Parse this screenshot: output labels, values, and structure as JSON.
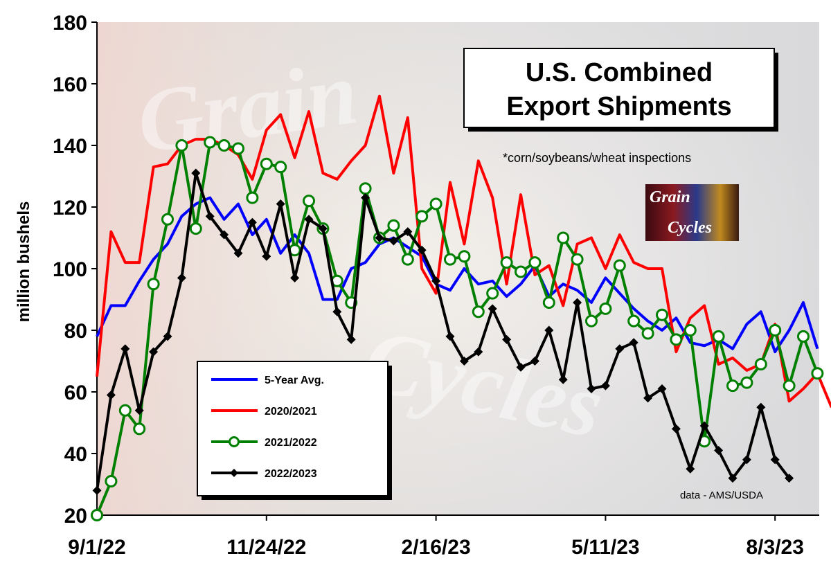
{
  "chart_data": {
    "type": "line",
    "title": "U.S. Combined Export Shipments",
    "title_lines": [
      "U.S. Combined",
      "Export Shipments"
    ],
    "subtitle": "*corn/soybeans/wheat  inspections",
    "source": "data - AMS/USDA",
    "ylabel": "million bushels",
    "xlabel": "",
    "ylim": [
      20,
      180
    ],
    "yticks": [
      20,
      40,
      60,
      80,
      100,
      120,
      140,
      160,
      180
    ],
    "x_start": "9/1/22",
    "x_step": "1 week",
    "xtick_labels": [
      "9/1/22",
      "11/24/22",
      "2/16/23",
      "5/11/23",
      "8/3/23"
    ],
    "xtick_week_index": [
      0,
      12,
      24,
      36,
      48
    ],
    "legend_position": "lower-left",
    "grid": false,
    "logo": {
      "line1": "Grain",
      "line2": "Cycles"
    },
    "watermark": "Grain Cycles",
    "series": [
      {
        "name": "5-Year Avg.",
        "color": "#0000ff",
        "marker": "none",
        "values": [
          78,
          88,
          88,
          96,
          103,
          108,
          117,
          121,
          123,
          116,
          121,
          111,
          116,
          105,
          111,
          105,
          90,
          90,
          100,
          102,
          108,
          110,
          107,
          104,
          95,
          93,
          100,
          95,
          96,
          91,
          95,
          101,
          91,
          95,
          93,
          89,
          97,
          92,
          87,
          83,
          80,
          84,
          76,
          75,
          77,
          74,
          82,
          86,
          73,
          80,
          89,
          74
        ]
      },
      {
        "name": "2020/2021",
        "color": "#ff0000",
        "marker": "none",
        "values": [
          65,
          112,
          102,
          102,
          133,
          134,
          140,
          142,
          142,
          140,
          137,
          129,
          145,
          150,
          136,
          151,
          131,
          129,
          135,
          140,
          156,
          131,
          149,
          100,
          92,
          128,
          108,
          135,
          123,
          95,
          124,
          98,
          101,
          88,
          108,
          110,
          100,
          111,
          102,
          100,
          100,
          73,
          84,
          88,
          69,
          71,
          67,
          69,
          82,
          57,
          61,
          66,
          55
        ]
      },
      {
        "name": "2021/2022",
        "color": "#008000",
        "marker": "circle",
        "values": [
          20,
          31,
          54,
          48,
          95,
          116,
          140,
          113,
          141,
          140,
          139,
          123,
          134,
          133,
          106,
          122,
          113,
          96,
          89,
          126,
          110,
          114,
          103,
          117,
          121,
          103,
          104,
          86,
          92,
          102,
          99,
          102,
          89,
          110,
          103,
          83,
          87,
          101,
          83,
          79,
          85,
          77,
          80,
          44,
          78,
          62,
          63,
          69,
          80,
          62,
          78,
          66
        ]
      },
      {
        "name": "2022/2023",
        "color": "#000000",
        "marker": "diamond",
        "values": [
          28,
          59,
          74,
          54,
          73,
          78,
          97,
          131,
          117,
          111,
          105,
          115,
          104,
          121,
          97,
          116,
          113,
          86,
          77,
          123,
          110,
          109,
          112,
          106,
          96,
          78,
          70,
          73,
          87,
          77,
          68,
          70,
          80,
          64,
          89,
          61,
          62,
          74,
          76,
          58,
          61,
          48,
          35,
          49,
          41,
          32,
          38,
          55,
          38,
          32
        ]
      }
    ]
  }
}
